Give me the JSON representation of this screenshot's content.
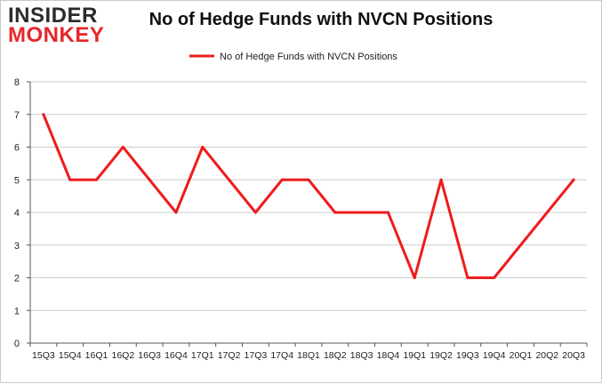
{
  "logo": {
    "line1": "INSIDER",
    "line2": "MONKEY"
  },
  "colors": {
    "series": "#ee1c1c",
    "grid": "#cccccc",
    "axis": "#555555",
    "text": "#222222"
  },
  "chart_data": {
    "type": "line",
    "title": "No of Hedge Funds with NVCN Positions",
    "xlabel": "",
    "ylabel": "",
    "legend_position": "top-center",
    "grid": true,
    "ylim": [
      0,
      8
    ],
    "yticks": [
      0,
      1,
      2,
      3,
      4,
      5,
      6,
      7,
      8
    ],
    "categories": [
      "15Q3",
      "15Q4",
      "16Q1",
      "16Q2",
      "16Q3",
      "16Q4",
      "17Q1",
      "17Q2",
      "17Q3",
      "17Q4",
      "18Q1",
      "18Q2",
      "18Q3",
      "18Q4",
      "19Q1",
      "19Q2",
      "19Q3",
      "19Q4",
      "20Q1",
      "20Q2",
      "20Q3"
    ],
    "series": [
      {
        "name": "No of Hedge Funds with NVCN Positions",
        "values": [
          7,
          5,
          5,
          6,
          5,
          4,
          6,
          5,
          4,
          5,
          5,
          4,
          4,
          4,
          2,
          5,
          2,
          2,
          3,
          4,
          5
        ]
      }
    ]
  }
}
